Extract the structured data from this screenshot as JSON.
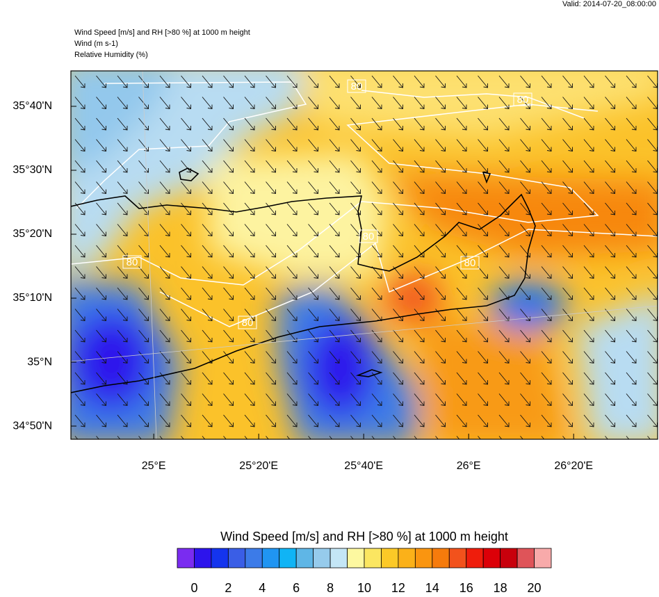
{
  "header": {
    "valid": "Valid: 2014-07-20_08:00:00",
    "title_lines": [
      "Wind Speed [m/s] and RH [>80 %] at 1000 m height",
      "Wind   (m s-1)",
      "Relative Humidity   (%)"
    ]
  },
  "map": {
    "lonlim": [
      24.737,
      26.6
    ],
    "latlim": [
      34.799,
      35.759
    ],
    "lon_ticks": [
      {
        "value": 25,
        "label": "25°E"
      },
      {
        "value": 25.333333,
        "label": "25°20'E"
      },
      {
        "value": 25.666667,
        "label": "25°40'E"
      },
      {
        "value": 26,
        "label": "26°E"
      },
      {
        "value": 26.333333,
        "label": "26°20'E"
      }
    ],
    "lat_ticks": [
      {
        "value": 35.666667,
        "label": "35°40'N"
      },
      {
        "value": 35.5,
        "label": "35°30'N"
      },
      {
        "value": 35.333333,
        "label": "35°20'N"
      },
      {
        "value": 35.166667,
        "label": "35°10'N"
      },
      {
        "value": 35,
        "label": "35°N"
      },
      {
        "value": 34.833333,
        "label": "34°50'N"
      }
    ],
    "contour_labels": [
      80,
      80,
      80,
      80,
      80,
      80
    ]
  },
  "colorbar": {
    "title": "Wind Speed [m/s] and RH [>80 %] at 1000 m height",
    "xlim": [
      -1,
      21
    ],
    "xticks": [
      0,
      2,
      4,
      6,
      8,
      10,
      12,
      14,
      16,
      18,
      20
    ],
    "colors": [
      "#7a2cf0",
      "#2d14ec",
      "#1434ee",
      "#3a5ee6",
      "#3c7be8",
      "#2095f2",
      "#10b4f5",
      "#5fb6e6",
      "#96cbec",
      "#c4e6f6",
      "#fdf8a0",
      "#fbe661",
      "#fcc927",
      "#fbb119",
      "#fa9510",
      "#f67b0c",
      "#f2521c",
      "#ef1d0c",
      "#dc0008",
      "#c8000c",
      "#df5459",
      "#f8aaaa"
    ]
  }
}
